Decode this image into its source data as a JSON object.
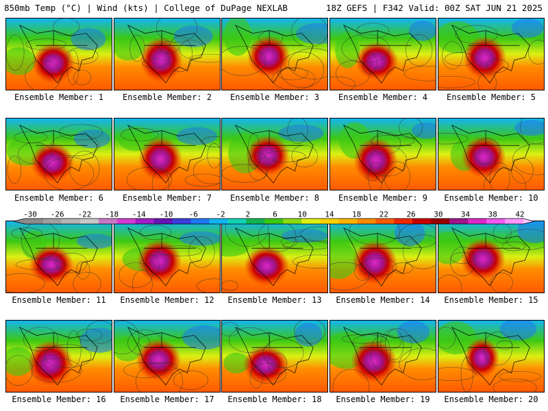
{
  "header": {
    "left": "850mb Temp (°C) | Wind (kts) | College of DuPage NEXLAB",
    "right": "18Z GEFS | F342 Valid: 00Z SAT JUN 21 2025"
  },
  "members": [
    "Ensemble Member: 1",
    "Ensemble Member: 2",
    "Ensemble Member: 3",
    "Ensemble Member: 4",
    "Ensemble Member: 5",
    "Ensemble Member: 6",
    "Ensemble Member: 7",
    "Ensemble Member: 8",
    "Ensemble Member: 9",
    "Ensemble Member: 10",
    "Ensemble Member: 11",
    "Ensemble Member: 12",
    "Ensemble Member: 13",
    "Ensemble Member: 14",
    "Ensemble Member: 15",
    "Ensemble Member: 16",
    "Ensemble Member: 17",
    "Ensemble Member: 18",
    "Ensemble Member: 19",
    "Ensemble Member: 20"
  ],
  "colorbar": {
    "labels": [
      "-30",
      "-26",
      "-22",
      "-18",
      "-14",
      "-10",
      "-6",
      "-2",
      "2",
      "6",
      "10",
      "14",
      "18",
      "22",
      "26",
      "30",
      "34",
      "38",
      "42"
    ],
    "colors": [
      "#8c8c8c",
      "#a0a0a0",
      "#b4b4b4",
      "#c8c8c8",
      "#c878c8",
      "#d23cd2",
      "#a01ec8",
      "#6414b4",
      "#3c3cdc",
      "#1e78f0",
      "#14b4f0",
      "#14d2b4",
      "#14b450",
      "#3cc814",
      "#8cdc14",
      "#dcf014",
      "#ffd200",
      "#ffb400",
      "#ff8c00",
      "#ff5a00",
      "#f02800",
      "#c80000",
      "#960000",
      "#a0148c",
      "#dc28c8",
      "#f05af0",
      "#ff96ff"
    ]
  },
  "colors": {
    "cold": "#14b4f0",
    "mid": "#3cc814",
    "warm": "#ff8c00",
    "hot": "#c80000",
    "extreme": "#dc28c8"
  }
}
